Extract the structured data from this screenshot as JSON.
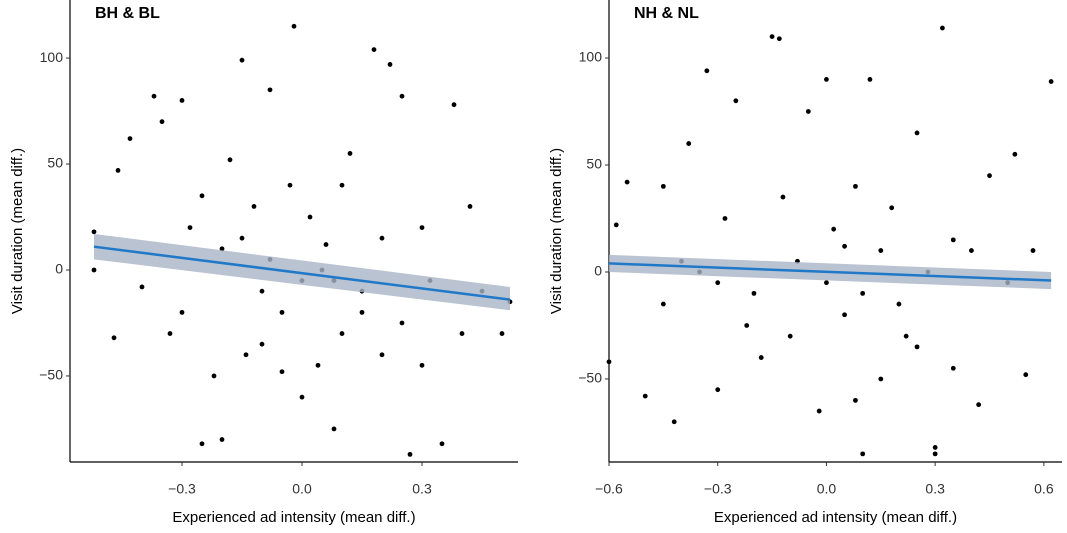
{
  "chart_data": [
    {
      "type": "scatter",
      "title": "BH & BL",
      "xlabel": "Experienced ad intensity (mean diff.)",
      "ylabel": "Visit duration (mean diff.)",
      "xlim": [
        -0.58,
        0.54
      ],
      "ylim": [
        -90.6,
        127.4
      ],
      "xticks": [
        {
          "value": -0.3,
          "label": "−0.3"
        },
        {
          "value": 0,
          "label": "0.0"
        },
        0.3
      ],
      "yticks": [
        {
          "value": -50,
          "label": "−50"
        },
        0,
        50,
        100
      ],
      "color": "#000000",
      "x": [
        -0.52,
        -0.52,
        -0.47,
        -0.46,
        -0.43,
        -0.4,
        -0.37,
        -0.35,
        -0.33,
        -0.3,
        -0.28,
        -0.25,
        -0.22,
        -0.2,
        -0.18,
        -0.15,
        -0.14,
        -0.12,
        -0.1,
        -0.08,
        -0.05,
        -0.03,
        -0.02,
        0,
        0,
        0.02,
        0.04,
        0.06,
        0.08,
        0.1,
        0.12,
        0.15,
        0.18,
        0.2,
        0.22,
        0.25,
        0.27,
        0.3,
        0.32,
        0.35,
        0.38,
        0.4,
        0.42,
        0.45,
        0.5,
        0.52,
        -0.1,
        0.05,
        -0.2,
        0.1,
        -0.05,
        0.15,
        0.25,
        -0.3,
        0.3,
        -0.15,
        0.08,
        -0.08,
        0.2,
        -0.25
      ],
      "y": [
        18,
        0,
        -32,
        47,
        62,
        -8,
        82,
        70,
        -30,
        80,
        20,
        -82,
        -50,
        -80,
        52,
        99,
        -40,
        30,
        -10,
        85,
        -20,
        40,
        115,
        -5,
        -60,
        25,
        -45,
        12,
        -75,
        -30,
        55,
        -10,
        104,
        -40,
        97,
        82,
        -87,
        20,
        -5,
        -82,
        78,
        -30,
        30,
        -10,
        -30,
        -15,
        -35,
        0,
        10,
        40,
        -48,
        -20,
        -25,
        -20,
        -45,
        15,
        -5,
        5,
        15,
        35
      ],
      "fit": {
        "color": "#1f78c8",
        "band_color": "#a9b4c6",
        "x": [
          -0.52,
          0.52
        ],
        "y": [
          11,
          -14
        ],
        "lower": [
          5,
          -19
        ],
        "upper": [
          17,
          -8
        ]
      }
    },
    {
      "type": "scatter",
      "title": "NH & NL",
      "xlabel": "Experienced ad intensity (mean diff.)",
      "ylabel": "Visit duration (mean diff.)",
      "xlim": [
        -0.6,
        0.65
      ],
      "ylim": [
        -88.8,
        127.1
      ],
      "xticks": [
        {
          "value": -0.6,
          "label": "−0.6"
        },
        {
          "value": -0.3,
          "label": "−0.3"
        },
        {
          "value": 0,
          "label": "0.0"
        },
        0.3,
        0.6
      ],
      "yticks": [
        {
          "value": -50,
          "label": "−50"
        },
        0,
        50,
        100
      ],
      "color": "#000000",
      "x": [
        -0.6,
        -0.58,
        -0.55,
        -0.5,
        -0.45,
        -0.42,
        -0.38,
        -0.33,
        -0.3,
        -0.25,
        -0.2,
        -0.15,
        -0.13,
        -0.1,
        -0.05,
        -0.02,
        0,
        0.02,
        0.05,
        0.08,
        0.1,
        0.12,
        0.15,
        0.2,
        0.25,
        0.3,
        0.3,
        0.32,
        0.35,
        0.4,
        0.42,
        0.45,
        0.5,
        0.55,
        0.57,
        0.62,
        -0.35,
        -0.28,
        -0.22,
        -0.12,
        -0.08,
        0,
        0.05,
        0.1,
        0.18,
        0.22,
        0.28,
        0.35,
        -0.45,
        -0.4,
        0.52,
        0.15,
        -0.18,
        0.25,
        -0.3,
        0.08
      ],
      "y": [
        -42,
        22,
        42,
        -58,
        40,
        -70,
        60,
        94,
        -55,
        80,
        -10,
        110,
        109,
        -30,
        75,
        -65,
        90,
        20,
        -20,
        -60,
        -85,
        90,
        -50,
        -15,
        65,
        -85,
        -82,
        114,
        -45,
        10,
        -62,
        45,
        -5,
        -48,
        10,
        89,
        0,
        25,
        -25,
        35,
        5,
        -5,
        12,
        -10,
        30,
        -30,
        0,
        15,
        -15,
        5,
        55,
        10,
        -40,
        -35,
        -5,
        40
      ],
      "fit": {
        "color": "#1f78c8",
        "band_color": "#a9b4c6",
        "x": [
          -0.6,
          0.62
        ],
        "y": [
          4,
          -4
        ],
        "lower": [
          0,
          -8
        ],
        "upper": [
          8,
          0
        ]
      }
    }
  ]
}
